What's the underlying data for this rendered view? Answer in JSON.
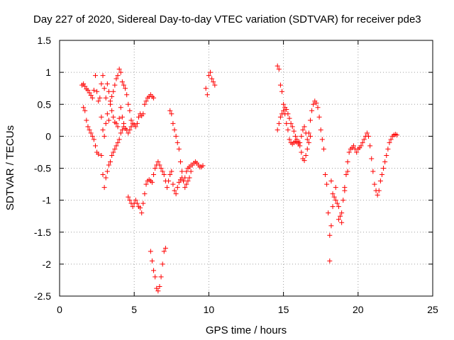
{
  "chart_data": {
    "type": "scatter",
    "title": "Day 227 of 2020, Sidereal Day-to-day VTEC variation (SDTVAR) for receiver pde3",
    "xlabel": "GPS time / hours",
    "ylabel": "SDTVAR / TECUs",
    "xlim": [
      0,
      25
    ],
    "ylim": [
      -2.5,
      1.5
    ],
    "xticks": [
      0,
      5,
      10,
      15,
      20,
      25
    ],
    "yticks": [
      -2.5,
      -2,
      -1.5,
      -1,
      -0.5,
      0,
      0.5,
      1,
      1.5
    ],
    "xtick_labels": [
      "0",
      "5",
      "10",
      "15",
      "20",
      "25"
    ],
    "ytick_labels": [
      "-2.5",
      "-2",
      "-1.5",
      "-1",
      "-0.5",
      "0",
      "0.5",
      "1",
      "1.5"
    ],
    "grid": true,
    "marker": "+",
    "color": "#ff0000",
    "series": [
      {
        "name": "SDTVAR",
        "points": [
          [
            1.5,
            0.8
          ],
          [
            1.6,
            0.82
          ],
          [
            1.7,
            0.78
          ],
          [
            1.8,
            0.74
          ],
          [
            1.9,
            0.72
          ],
          [
            2.0,
            0.68
          ],
          [
            2.1,
            0.64
          ],
          [
            2.2,
            0.6
          ],
          [
            2.3,
            0.72
          ],
          [
            2.4,
            0.95
          ],
          [
            2.5,
            0.7
          ],
          [
            2.6,
            0.55
          ],
          [
            2.7,
            0.6
          ],
          [
            2.8,
            0.82
          ],
          [
            2.9,
            0.95
          ],
          [
            3.0,
            0.75
          ],
          [
            3.1,
            0.6
          ],
          [
            3.2,
            0.82
          ],
          [
            3.3,
            0.7
          ],
          [
            3.4,
            0.55
          ],
          [
            3.5,
            0.62
          ],
          [
            3.6,
            0.7
          ],
          [
            3.7,
            0.8
          ],
          [
            3.8,
            0.9
          ],
          [
            3.9,
            0.95
          ],
          [
            4.0,
            1.05
          ],
          [
            4.1,
            1.0
          ],
          [
            4.2,
            0.85
          ],
          [
            4.3,
            0.8
          ],
          [
            4.4,
            0.75
          ],
          [
            4.5,
            0.65
          ],
          [
            4.6,
            0.5
          ],
          [
            4.7,
            0.4
          ],
          [
            4.8,
            0.25
          ],
          [
            1.6,
            0.45
          ],
          [
            1.7,
            0.4
          ],
          [
            1.8,
            0.25
          ],
          [
            1.9,
            0.15
          ],
          [
            2.0,
            0.1
          ],
          [
            2.1,
            0.05
          ],
          [
            2.2,
            0.0
          ],
          [
            2.3,
            -0.05
          ],
          [
            2.4,
            -0.15
          ],
          [
            2.5,
            -0.25
          ],
          [
            2.6,
            -0.28
          ],
          [
            2.8,
            -0.3
          ],
          [
            2.9,
            -0.6
          ],
          [
            3.0,
            -0.8
          ],
          [
            3.1,
            -0.65
          ],
          [
            3.2,
            -0.55
          ],
          [
            3.3,
            -0.45
          ],
          [
            3.4,
            -0.4
          ],
          [
            3.5,
            -0.3
          ],
          [
            3.6,
            -0.25
          ],
          [
            3.7,
            -0.2
          ],
          [
            3.8,
            -0.15
          ],
          [
            3.9,
            -0.1
          ],
          [
            4.0,
            -0.05
          ],
          [
            4.1,
            0.05
          ],
          [
            4.2,
            0.1
          ],
          [
            4.3,
            0.15
          ],
          [
            4.4,
            0.12
          ],
          [
            4.5,
            0.1
          ],
          [
            4.6,
            0.05
          ],
          [
            4.7,
            0.1
          ],
          [
            4.8,
            0.15
          ],
          [
            4.9,
            0.2
          ],
          [
            5.0,
            0.18
          ],
          [
            5.1,
            0.15
          ],
          [
            5.2,
            0.2
          ],
          [
            5.3,
            0.3
          ],
          [
            5.4,
            0.35
          ],
          [
            5.5,
            0.32
          ],
          [
            5.6,
            0.35
          ],
          [
            5.7,
            0.5
          ],
          [
            5.8,
            0.55
          ],
          [
            5.9,
            0.6
          ],
          [
            6.0,
            0.62
          ],
          [
            6.1,
            0.65
          ],
          [
            6.2,
            0.62
          ],
          [
            6.3,
            0.6
          ],
          [
            2.8,
            0.3
          ],
          [
            2.9,
            0.1
          ],
          [
            3.0,
            0.0
          ],
          [
            3.1,
            0.2
          ],
          [
            3.2,
            0.35
          ],
          [
            3.3,
            0.25
          ],
          [
            3.4,
            0.5
          ],
          [
            3.5,
            0.4
          ],
          [
            3.6,
            0.3
          ],
          [
            3.7,
            0.22
          ],
          [
            3.8,
            0.2
          ],
          [
            3.9,
            0.15
          ],
          [
            4.0,
            0.28
          ],
          [
            4.1,
            0.45
          ],
          [
            4.2,
            0.3
          ],
          [
            4.3,
            0.2
          ],
          [
            4.6,
            -0.95
          ],
          [
            4.7,
            -1.0
          ],
          [
            4.8,
            -1.05
          ],
          [
            4.9,
            -1.1
          ],
          [
            5.0,
            -1.05
          ],
          [
            5.1,
            -1.0
          ],
          [
            5.2,
            -1.05
          ],
          [
            5.3,
            -1.1
          ],
          [
            5.4,
            -1.12
          ],
          [
            5.5,
            -1.2
          ],
          [
            5.6,
            -1.05
          ],
          [
            5.7,
            -0.9
          ],
          [
            5.8,
            -0.75
          ],
          [
            5.9,
            -0.7
          ],
          [
            6.0,
            -0.68
          ],
          [
            6.1,
            -0.7
          ],
          [
            6.2,
            -0.72
          ],
          [
            6.3,
            -0.6
          ],
          [
            6.4,
            -0.5
          ],
          [
            6.5,
            -0.45
          ],
          [
            6.6,
            -0.4
          ],
          [
            6.7,
            -0.45
          ],
          [
            6.8,
            -0.5
          ],
          [
            6.9,
            -0.55
          ],
          [
            7.0,
            -0.6
          ],
          [
            7.1,
            -0.7
          ],
          [
            7.2,
            -0.8
          ],
          [
            7.3,
            -0.7
          ],
          [
            7.4,
            -0.6
          ],
          [
            7.5,
            -0.55
          ],
          [
            7.6,
            -0.75
          ],
          [
            7.7,
            -0.85
          ],
          [
            7.8,
            -0.9
          ],
          [
            7.9,
            -0.8
          ],
          [
            8.0,
            -0.72
          ],
          [
            8.1,
            -0.68
          ],
          [
            8.2,
            -0.65
          ],
          [
            8.3,
            -0.7
          ],
          [
            8.4,
            -0.65
          ],
          [
            8.5,
            -0.55
          ],
          [
            8.6,
            -0.5
          ],
          [
            8.7,
            -0.48
          ],
          [
            8.8,
            -0.45
          ],
          [
            8.9,
            -0.45
          ],
          [
            9.0,
            -0.42
          ],
          [
            9.1,
            -0.4
          ],
          [
            9.2,
            -0.42
          ],
          [
            9.3,
            -0.45
          ],
          [
            9.4,
            -0.48
          ],
          [
            9.5,
            -0.48
          ],
          [
            9.6,
            -0.46
          ],
          [
            6.1,
            -1.8
          ],
          [
            6.2,
            -1.95
          ],
          [
            6.3,
            -2.1
          ],
          [
            6.4,
            -2.2
          ],
          [
            6.5,
            -2.38
          ],
          [
            6.6,
            -2.42
          ],
          [
            6.7,
            -2.35
          ],
          [
            6.8,
            -2.2
          ],
          [
            6.9,
            -2.0
          ],
          [
            7.0,
            -1.8
          ],
          [
            7.1,
            -1.75
          ],
          [
            7.4,
            0.4
          ],
          [
            7.5,
            0.35
          ],
          [
            7.6,
            0.2
          ],
          [
            7.7,
            0.1
          ],
          [
            7.8,
            0.0
          ],
          [
            7.9,
            -0.1
          ],
          [
            8.0,
            -0.2
          ],
          [
            8.1,
            -0.4
          ],
          [
            8.2,
            -0.55
          ],
          [
            8.3,
            -0.7
          ],
          [
            8.4,
            -0.8
          ],
          [
            8.5,
            -0.75
          ],
          [
            8.6,
            -0.7
          ],
          [
            8.7,
            -0.65
          ],
          [
            8.8,
            -0.55
          ],
          [
            9.8,
            0.75
          ],
          [
            9.9,
            0.65
          ],
          [
            10.0,
            0.95
          ],
          [
            10.1,
            1.0
          ],
          [
            10.2,
            0.9
          ],
          [
            10.3,
            0.85
          ],
          [
            10.4,
            0.8
          ],
          [
            14.6,
            1.1
          ],
          [
            14.7,
            1.05
          ],
          [
            14.8,
            0.8
          ],
          [
            14.9,
            0.7
          ],
          [
            15.0,
            0.5
          ],
          [
            15.1,
            0.35
          ],
          [
            15.2,
            0.2
          ],
          [
            15.3,
            0.1
          ],
          [
            15.4,
            -0.05
          ],
          [
            15.5,
            -0.1
          ],
          [
            15.6,
            -0.12
          ],
          [
            15.7,
            -0.1
          ],
          [
            15.8,
            -0.08
          ],
          [
            15.9,
            -0.05
          ],
          [
            16.0,
            -0.1
          ],
          [
            16.1,
            -0.15
          ],
          [
            16.2,
            -0.25
          ],
          [
            16.3,
            -0.35
          ],
          [
            16.4,
            -0.38
          ],
          [
            16.5,
            -0.3
          ],
          [
            16.6,
            -0.2
          ],
          [
            16.7,
            0.05
          ],
          [
            16.8,
            0.25
          ],
          [
            16.9,
            0.4
          ],
          [
            17.0,
            0.5
          ],
          [
            17.1,
            0.55
          ],
          [
            17.2,
            0.52
          ],
          [
            17.3,
            0.45
          ],
          [
            17.4,
            0.3
          ],
          [
            17.5,
            0.1
          ],
          [
            17.6,
            -0.05
          ],
          [
            17.7,
            -0.2
          ],
          [
            14.6,
            0.1
          ],
          [
            14.7,
            0.2
          ],
          [
            14.8,
            0.3
          ],
          [
            14.9,
            0.35
          ],
          [
            15.0,
            0.4
          ],
          [
            15.1,
            0.45
          ],
          [
            15.2,
            0.42
          ],
          [
            15.3,
            0.35
          ],
          [
            15.4,
            0.28
          ],
          [
            15.5,
            0.2
          ],
          [
            15.6,
            0.15
          ],
          [
            15.7,
            0.08
          ],
          [
            15.8,
            0.0
          ],
          [
            15.9,
            -0.08
          ],
          [
            16.0,
            -0.12
          ],
          [
            16.1,
            -0.1
          ],
          [
            16.2,
            0.0
          ],
          [
            16.3,
            0.1
          ],
          [
            16.4,
            0.15
          ],
          [
            16.5,
            0.05
          ],
          [
            16.6,
            -0.05
          ],
          [
            16.7,
            -0.1
          ],
          [
            16.8,
            0.0
          ],
          [
            17.8,
            -0.6
          ],
          [
            17.9,
            -0.75
          ],
          [
            18.0,
            -1.2
          ],
          [
            18.1,
            -1.55
          ],
          [
            18.2,
            -1.4
          ],
          [
            18.3,
            -1.1
          ],
          [
            18.4,
            -0.95
          ],
          [
            18.5,
            -1.0
          ],
          [
            18.6,
            -1.05
          ],
          [
            18.7,
            -1.1
          ],
          [
            18.8,
            -1.25
          ],
          [
            18.9,
            -1.2
          ],
          [
            19.0,
            -1.0
          ],
          [
            19.1,
            -0.8
          ],
          [
            19.2,
            -0.6
          ],
          [
            19.3,
            -0.4
          ],
          [
            19.4,
            -0.25
          ],
          [
            19.5,
            -0.2
          ],
          [
            19.6,
            -0.18
          ],
          [
            19.7,
            -0.15
          ],
          [
            19.8,
            -0.2
          ],
          [
            19.9,
            -0.25
          ],
          [
            20.0,
            -0.2
          ],
          [
            20.1,
            -0.18
          ],
          [
            20.2,
            -0.15
          ],
          [
            20.3,
            -0.1
          ],
          [
            20.4,
            -0.05
          ],
          [
            20.5,
            0.0
          ],
          [
            20.6,
            0.05
          ],
          [
            20.7,
            0.0
          ],
          [
            20.8,
            -0.15
          ],
          [
            20.9,
            -0.35
          ],
          [
            21.0,
            -0.55
          ],
          [
            21.1,
            -0.75
          ],
          [
            21.2,
            -0.85
          ],
          [
            21.3,
            -0.92
          ],
          [
            21.4,
            -0.85
          ],
          [
            21.5,
            -0.7
          ],
          [
            21.6,
            -0.6
          ],
          [
            21.7,
            -0.5
          ],
          [
            21.8,
            -0.4
          ],
          [
            21.9,
            -0.3
          ],
          [
            22.0,
            -0.2
          ],
          [
            22.1,
            -0.1
          ],
          [
            22.2,
            -0.05
          ],
          [
            22.3,
            0.0
          ],
          [
            22.4,
            0.02
          ],
          [
            22.5,
            0.03
          ],
          [
            22.6,
            0.02
          ],
          [
            18.1,
            -1.95
          ],
          [
            18.2,
            -0.7
          ],
          [
            18.3,
            -0.9
          ],
          [
            18.5,
            -0.8
          ],
          [
            18.7,
            -1.3
          ],
          [
            18.9,
            -1.35
          ],
          [
            19.1,
            -0.85
          ],
          [
            19.3,
            -0.55
          ]
        ]
      }
    ]
  }
}
